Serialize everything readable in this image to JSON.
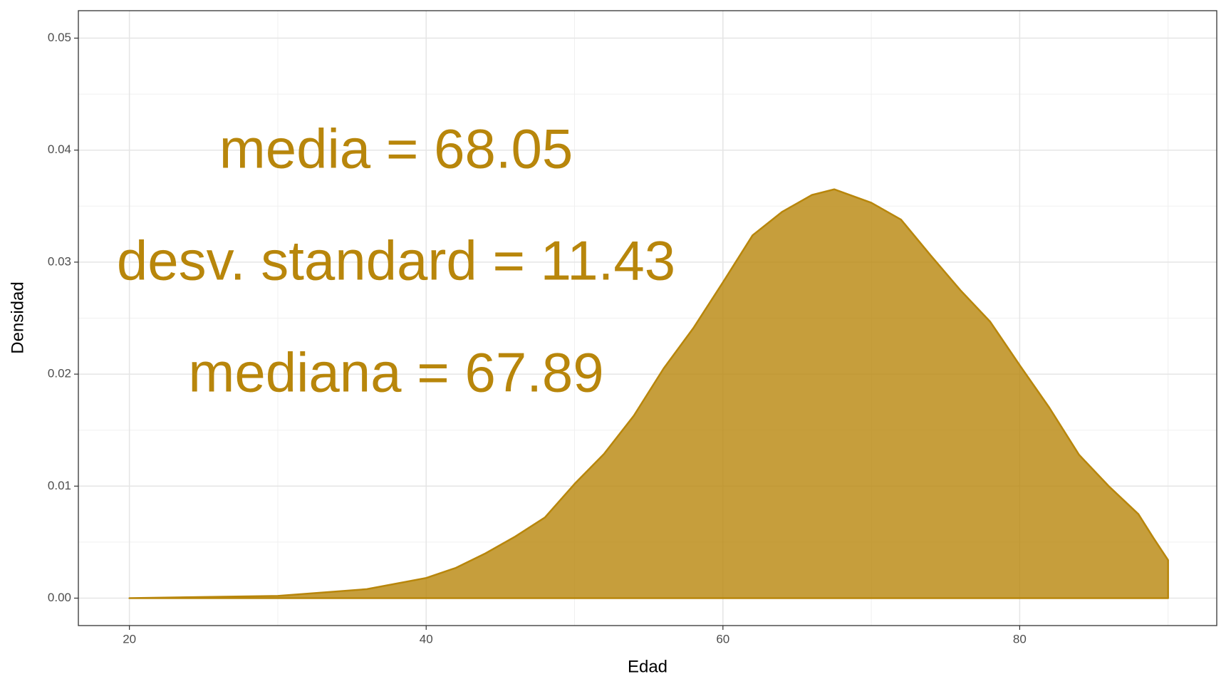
{
  "chart_data": {
    "type": "area",
    "x_label": "Edad",
    "y_label": "Densidad",
    "annotations": [
      "media = 68.05",
      "desv. standard = 11.43",
      "mediana = 67.89"
    ],
    "x": [
      20,
      30,
      36,
      40,
      42,
      44,
      46,
      48,
      50,
      52,
      54,
      56,
      58,
      60,
      62,
      64,
      66,
      67.5,
      70,
      72,
      74,
      76,
      78,
      80,
      82,
      84,
      86,
      88,
      89,
      90
    ],
    "series": [
      {
        "color": "#b8860b",
        "values": [
          0,
          0.0002,
          0.0008,
          0.0018,
          0.0027,
          0.004,
          0.0055,
          0.0072,
          0.0102,
          0.0129,
          0.0163,
          0.0205,
          0.0241,
          0.0282,
          0.0324,
          0.0345,
          0.036,
          0.0365,
          0.0353,
          0.0338,
          0.0306,
          0.0275,
          0.0247,
          0.0208,
          0.017,
          0.0128,
          0.01,
          0.0075,
          0.0054,
          0.0034
        ]
      }
    ],
    "xlim": [
      16.56,
      93.28
    ],
    "xticks": [
      20,
      40,
      60,
      80
    ],
    "ylim": [
      -0.00245,
      0.05245
    ],
    "yticks": [
      {
        "value": 0,
        "label": "0.00"
      },
      0.01,
      0.02,
      0.03,
      0.04,
      0.05
    ],
    "grid": true
  }
}
